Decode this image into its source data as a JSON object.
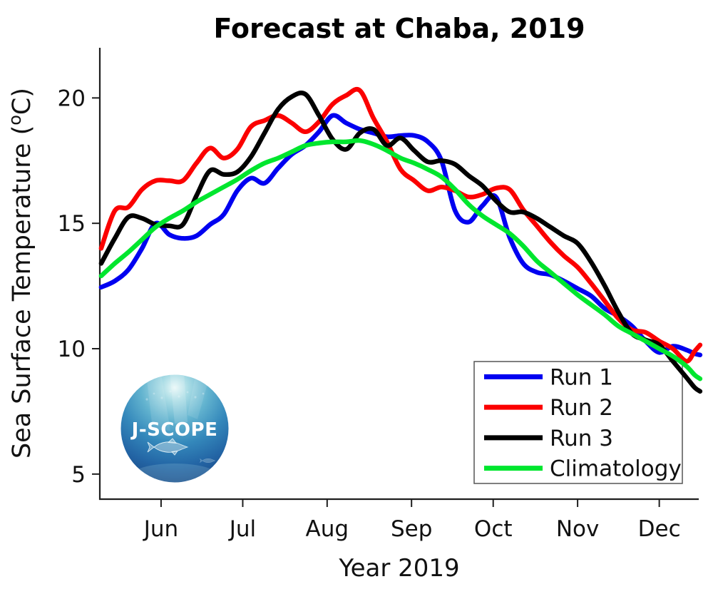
{
  "logo": {
    "text": "J-SCOPE"
  },
  "chart_data": {
    "type": "line",
    "title": "Forecast at Chaba, 2019",
    "xlabel": "Year 2019",
    "ylabel": "Sea Surface Temperature (°C)",
    "ylabel_parts": [
      "Sea Surface Temperature (",
      "o",
      "C)"
    ],
    "xlim": [
      129.5,
      349.5
    ],
    "ylim": [
      4,
      22
    ],
    "grid": false,
    "legend_position": "lower right",
    "x_axis_unit": "day of year 2019",
    "x_ticks": [
      {
        "label": "Jun",
        "doy": 152
      },
      {
        "label": "Jul",
        "doy": 182
      },
      {
        "label": "Aug",
        "doy": 213
      },
      {
        "label": "Sep",
        "doy": 244
      },
      {
        "label": "Oct",
        "doy": 274
      },
      {
        "label": "Nov",
        "doy": 305
      },
      {
        "label": "Dec",
        "doy": 335
      }
    ],
    "y_ticks": [
      5,
      10,
      15,
      20
    ],
    "x_doy": [
      130,
      135,
      140,
      145,
      150,
      155,
      160,
      165,
      170,
      175,
      180,
      185,
      190,
      195,
      200,
      205,
      210,
      215,
      220,
      225,
      230,
      235,
      240,
      245,
      250,
      255,
      260,
      265,
      270,
      275,
      280,
      285,
      290,
      295,
      300,
      305,
      310,
      315,
      320,
      325,
      330,
      335,
      340,
      345,
      348,
      350
    ],
    "series": [
      {
        "name": "Run 1",
        "color": "#0000f0",
        "values": [
          12.45,
          12.7,
          13.15,
          14.0,
          15.0,
          14.55,
          14.4,
          14.5,
          14.95,
          15.35,
          16.3,
          16.8,
          16.6,
          17.2,
          17.75,
          18.1,
          18.65,
          19.3,
          19.0,
          18.75,
          18.6,
          18.45,
          18.5,
          18.5,
          18.25,
          17.5,
          15.5,
          15.05,
          15.7,
          16.05,
          14.45,
          13.4,
          13.05,
          12.95,
          12.7,
          12.4,
          12.1,
          11.6,
          11.3,
          10.9,
          10.3,
          9.85,
          10.1,
          9.95,
          9.8,
          9.75
        ]
      },
      {
        "name": "Run 2",
        "color": "#fb0000",
        "values": [
          14.0,
          15.5,
          15.65,
          16.35,
          16.7,
          16.7,
          16.7,
          17.4,
          18.0,
          17.6,
          17.95,
          18.85,
          19.1,
          19.3,
          19.0,
          18.65,
          19.05,
          19.75,
          20.1,
          20.3,
          19.2,
          18.25,
          17.15,
          16.7,
          16.3,
          16.45,
          16.3,
          16.05,
          16.15,
          16.4,
          16.35,
          15.55,
          14.9,
          14.25,
          13.7,
          13.25,
          12.6,
          11.9,
          11.2,
          10.75,
          10.65,
          10.3,
          10.0,
          9.5,
          9.9,
          10.15
        ]
      },
      {
        "name": "Run 3",
        "color": "#000000",
        "values": [
          13.4,
          14.4,
          15.25,
          15.2,
          14.95,
          14.9,
          14.95,
          16.1,
          17.1,
          16.95,
          17.05,
          17.65,
          18.6,
          19.55,
          20.05,
          20.15,
          19.3,
          18.35,
          17.95,
          18.6,
          18.75,
          18.1,
          18.4,
          17.9,
          17.45,
          17.5,
          17.35,
          16.9,
          16.5,
          15.9,
          15.45,
          15.45,
          15.2,
          14.85,
          14.5,
          14.2,
          13.45,
          12.5,
          11.45,
          10.6,
          10.35,
          10.15,
          9.5,
          8.85,
          8.45,
          8.3
        ]
      },
      {
        "name": "Climatology",
        "color": "#00e62e",
        "values": [
          12.9,
          13.4,
          13.85,
          14.35,
          14.85,
          15.2,
          15.5,
          15.85,
          16.15,
          16.45,
          16.75,
          17.1,
          17.4,
          17.6,
          17.85,
          18.1,
          18.2,
          18.25,
          18.25,
          18.3,
          18.15,
          17.9,
          17.6,
          17.4,
          17.15,
          16.85,
          16.35,
          15.75,
          15.3,
          14.95,
          14.6,
          14.1,
          13.5,
          13.05,
          12.6,
          12.15,
          11.75,
          11.35,
          10.9,
          10.6,
          10.3,
          10.0,
          9.7,
          9.3,
          8.95,
          8.8
        ]
      }
    ]
  }
}
